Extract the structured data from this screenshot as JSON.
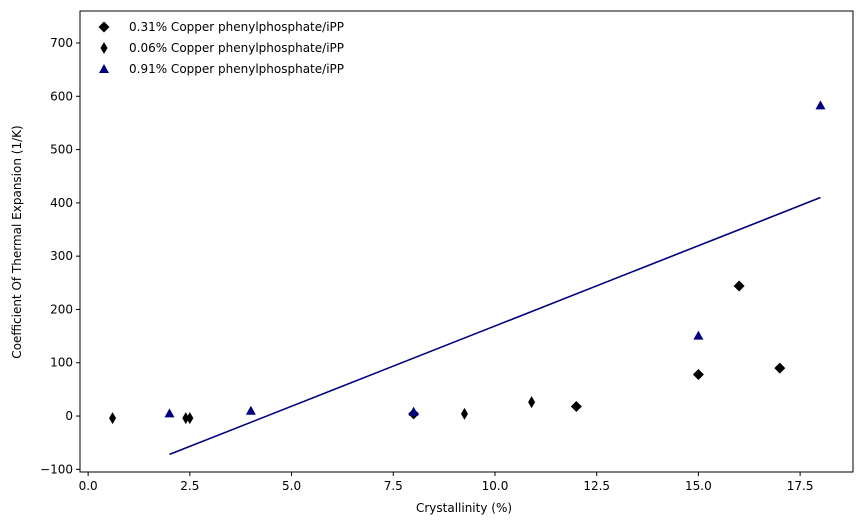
{
  "chart_data": {
    "type": "scatter",
    "xlabel": "Crystallinity (%)",
    "ylabel": "Coefficient Of Thermal Expansion (1/K)",
    "xlim": [
      -0.2,
      18.8
    ],
    "ylim": [
      -105,
      760
    ],
    "x_ticks": [
      0.0,
      2.5,
      5.0,
      7.5,
      10.0,
      12.5,
      15.0,
      17.5
    ],
    "x_tick_labels": [
      "0.0",
      "2.5",
      "5.0",
      "7.5",
      "10.0",
      "12.5",
      "15.0",
      "17.5"
    ],
    "y_ticks": [
      -100,
      0,
      100,
      200,
      300,
      400,
      500,
      600,
      700
    ],
    "y_tick_labels": [
      "−100",
      "0",
      "100",
      "200",
      "300",
      "400",
      "500",
      "600",
      "700"
    ],
    "grid": false,
    "legend_position": "top-left",
    "series": [
      {
        "name": "0.31% Copper phenylphosphate/iPP",
        "marker": "diamond",
        "color": "#000000",
        "points": [
          [
            8.0,
            4
          ],
          [
            12.0,
            18
          ],
          [
            15.0,
            78
          ],
          [
            16.0,
            244
          ],
          [
            17.0,
            90
          ]
        ]
      },
      {
        "name": "0.06% Copper phenylphosphate/iPP",
        "marker": "thin_diamond",
        "color": "#000000",
        "points": [
          [
            0.6,
            -4
          ],
          [
            2.4,
            -4
          ],
          [
            2.5,
            -4
          ],
          [
            9.25,
            4
          ],
          [
            10.9,
            26
          ]
        ]
      },
      {
        "name": "0.91% Copper phenylphosphate/iPP",
        "marker": "triangle",
        "color": "#000080",
        "points": [
          [
            2.0,
            5
          ],
          [
            4.0,
            10
          ],
          [
            8.0,
            8
          ],
          [
            15.0,
            151
          ],
          [
            18.0,
            583
          ]
        ]
      }
    ],
    "fit_line": {
      "color": "#000080",
      "points": [
        [
          2.0,
          -72
        ],
        [
          18.0,
          410
        ]
      ]
    }
  }
}
